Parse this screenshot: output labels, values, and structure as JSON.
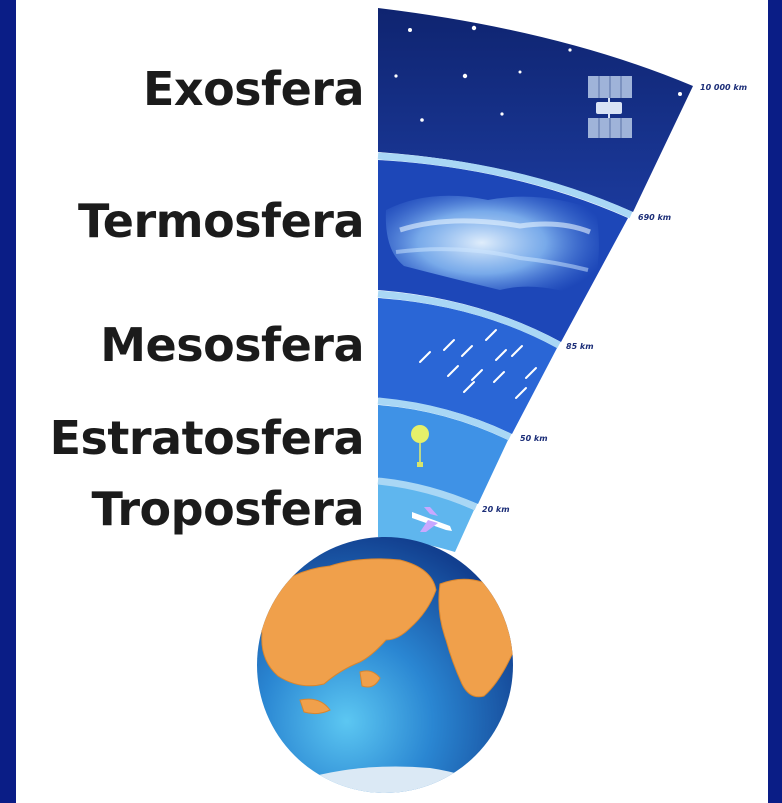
{
  "layers": [
    {
      "key": "exosphere",
      "name": "Exosfera",
      "altitude": "10 000 km"
    },
    {
      "key": "thermosphere",
      "name": "Termosfera",
      "altitude": "690 km"
    },
    {
      "key": "mesosphere",
      "name": "Mesosfera",
      "altitude": "85 km"
    },
    {
      "key": "stratosphere",
      "name": "Estratosfera",
      "altitude": "50 km"
    },
    {
      "key": "troposphere",
      "name": "Troposfera",
      "altitude": "20 km"
    }
  ],
  "colors": {
    "frame": "#0b1f8c",
    "exosphere": "#16318e",
    "thermosphere": "#1d47b8",
    "mesosphere": "#2a66d6",
    "stratosphere": "#3f92e6",
    "troposphere": "#5fb6ee",
    "separator": "#a9d7f5",
    "ocean": "#1f6fc2",
    "land": "#f0a04b"
  },
  "icons": {
    "exosphere": "satellite-icon",
    "thermosphere": "aurora-icon",
    "mesosphere": "meteors-icon",
    "stratosphere": "weather-balloon-icon",
    "troposphere": "airplane-icon",
    "planet": "earth-globe-icon"
  }
}
